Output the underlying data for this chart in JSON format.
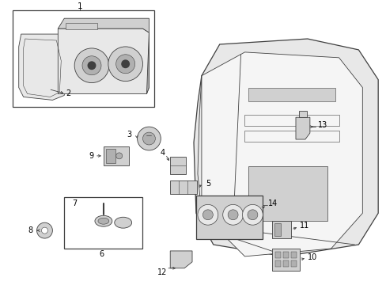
{
  "background_color": "#ffffff",
  "line_color": "#404040",
  "fig_width": 4.89,
  "fig_height": 3.6,
  "dpi": 100,
  "fill_light": "#e8e8e8",
  "fill_mid": "#d0d0d0",
  "fill_dark": "#b0b0b0"
}
